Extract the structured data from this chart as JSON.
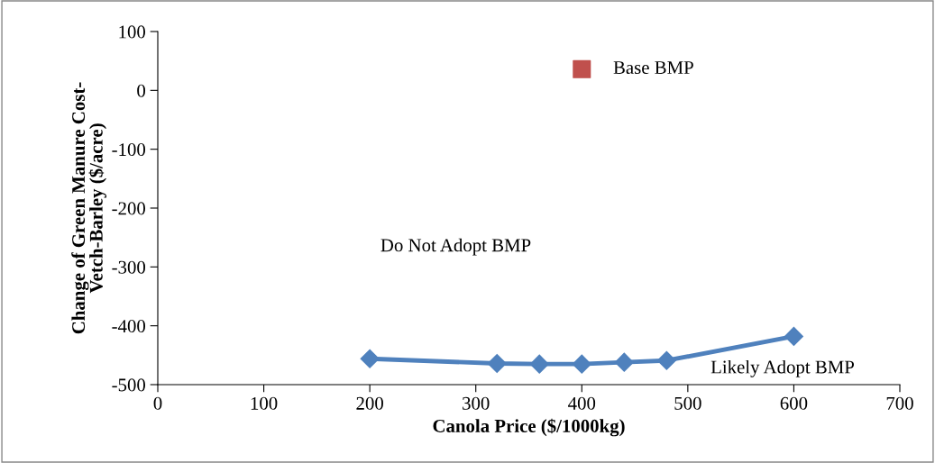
{
  "chart_data": {
    "type": "line",
    "xlabel": "Canola Price ($/1000kg)",
    "ylabel": "Change of Green Manure Cost-\nVetch-Barley ($/acre)",
    "series": [
      {
        "color": "#4f81bd",
        "marker": "diamond",
        "x": [
          200,
          320,
          360,
          400,
          440,
          480,
          600
        ],
        "values": [
          -456,
          -464,
          -465,
          -465,
          -462,
          -459,
          -418
        ]
      },
      {
        "type": "scatter",
        "name": "Base BMP",
        "color": "#c0504d",
        "marker": "square",
        "x": [
          400
        ],
        "values": [
          36
        ]
      }
    ],
    "xlim": [
      0,
      700
    ],
    "xticks": [
      0,
      100,
      200,
      300,
      400,
      500,
      600,
      700
    ],
    "ylim": [
      -500,
      100
    ],
    "yticks": [
      -500,
      -400,
      -300,
      -200,
      -100,
      0,
      100
    ],
    "annotations": [
      "Do Not Adopt BMP",
      "Likely Adopt BMP"
    ],
    "grid": false,
    "legend": false
  }
}
